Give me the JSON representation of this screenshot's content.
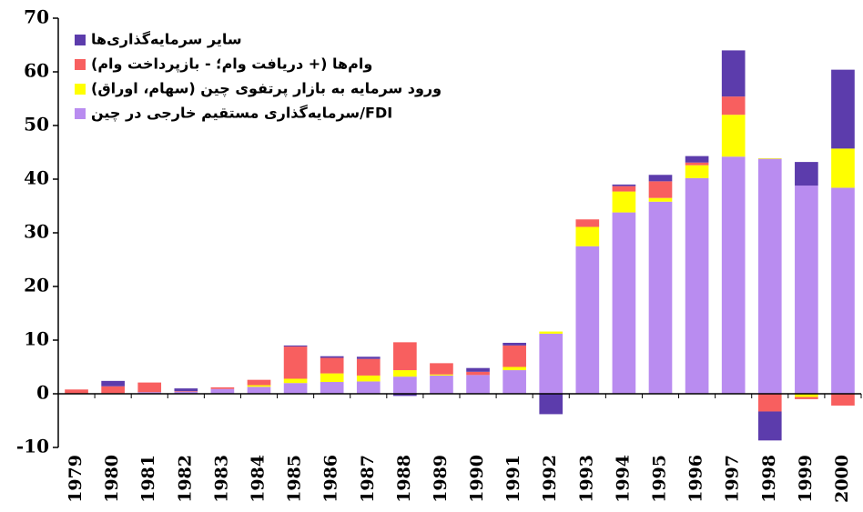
{
  "chart_data": {
    "type": "bar",
    "stacked": true,
    "categories": [
      "1979",
      "1980",
      "1981",
      "1982",
      "1983",
      "1984",
      "1985",
      "1986",
      "1987",
      "1988",
      "1989",
      "1990",
      "1991",
      "1992",
      "1993",
      "1994",
      "1995",
      "1996",
      "1997",
      "1998",
      "1999",
      "2000"
    ],
    "series": [
      {
        "name": "سرمایه‌گذاری مستقیم خارجی در چین/FDI",
        "color": "#b98cf0",
        "values": [
          0,
          0.1,
          0.3,
          0.4,
          0.9,
          1.3,
          2.0,
          2.2,
          2.3,
          3.2,
          3.4,
          3.5,
          4.4,
          11.2,
          27.5,
          33.8,
          35.8,
          40.2,
          44.2,
          43.8,
          38.8,
          38.4
        ]
      },
      {
        "name": "ورود سرمایه به بازار پرتفوی چین (سهام، اوراق)",
        "color": "#ffff00",
        "values": [
          0,
          0,
          0,
          0,
          0,
          0.3,
          0.8,
          1.6,
          1.1,
          1.2,
          0.2,
          0,
          0.6,
          0.4,
          3.6,
          3.9,
          0.7,
          2.4,
          7.8,
          0.1,
          -0.6,
          7.3
        ]
      },
      {
        "name": "وام‌ها (+ دریافت وام؛ - بازپرداخت وام)",
        "color": "#f85f5f",
        "values": [
          0.8,
          1.3,
          1.8,
          0.1,
          0.3,
          1.0,
          6.0,
          2.9,
          3.1,
          5.2,
          2.1,
          0.6,
          4.0,
          0,
          1.4,
          1.0,
          3.1,
          0.5,
          3.4,
          -3.3,
          -0.4,
          -2.2
        ]
      },
      {
        "name": "سایر سرمایه‌گذاری‌ها",
        "color": "#5c3cac",
        "values": [
          0,
          1.0,
          0,
          0.5,
          0,
          0,
          0.2,
          0.3,
          0.4,
          -0.4,
          0,
          0.7,
          0.5,
          -3.8,
          0,
          0.3,
          1.2,
          1.2,
          8.6,
          -5.4,
          4.4,
          14.7
        ]
      }
    ],
    "ylim": [
      -10,
      70
    ],
    "yticks": [
      -10,
      0,
      10,
      20,
      30,
      40,
      50,
      60,
      70
    ],
    "legend": "upper-left"
  }
}
